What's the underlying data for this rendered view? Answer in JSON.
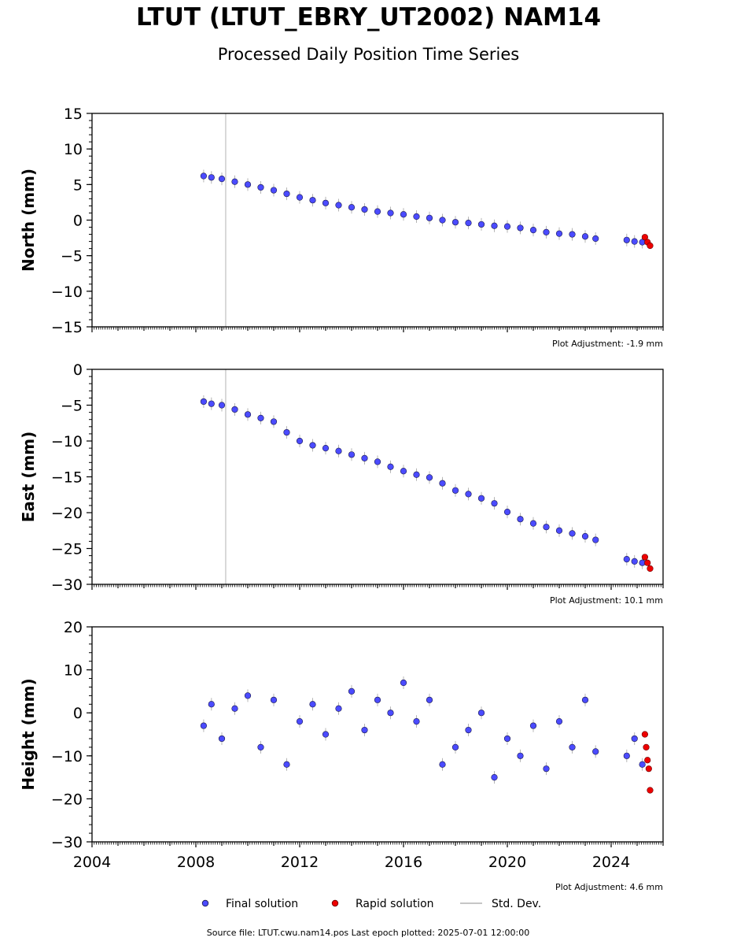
{
  "title": "LTUT (LTUT_EBRY_UT2002) NAM14",
  "subtitle": "Processed Daily Position Time Series",
  "colors": {
    "final_fill": "#4b4bff",
    "final_edge": "#1a1a4a",
    "rapid_fill": "#ee0000",
    "std_dev": "#b4b4b4",
    "vertical_marker": "#cccccc"
  },
  "legend": {
    "final": "Final solution",
    "rapid": "Rapid solution",
    "std": "Std. Dev."
  },
  "source_text": "Source file: LTUT.cwu.nam14.pos  Last epoch plotted: 2025-07-01 12:00:00",
  "chart_data": [
    {
      "type": "scatter",
      "ylabel": "North (mm)",
      "ylim": [
        -15,
        15
      ],
      "yticks": [
        15,
        10,
        5,
        0,
        -5,
        -10,
        -15
      ],
      "xlim": [
        2004,
        2026
      ],
      "adjustment": "Plot Adjustment: -1.9 mm",
      "equipment_change_line": 2009.15,
      "final_series": {
        "name": "Final solution",
        "x": [
          2008.3,
          2008.6,
          2009.0,
          2009.5,
          2010.0,
          2010.5,
          2011.0,
          2011.5,
          2012.0,
          2012.5,
          2013.0,
          2013.5,
          2014.0,
          2014.5,
          2015.0,
          2015.5,
          2016.0,
          2016.5,
          2017.0,
          2017.5,
          2018.0,
          2018.5,
          2019.0,
          2019.5,
          2020.0,
          2020.5,
          2021.0,
          2021.5,
          2022.0,
          2022.5,
          2023.0,
          2023.4,
          2024.6,
          2024.9,
          2025.2
        ],
        "y": [
          6.2,
          6.0,
          5.8,
          5.4,
          5.0,
          4.6,
          4.2,
          3.7,
          3.2,
          2.8,
          2.4,
          2.1,
          1.8,
          1.5,
          1.2,
          1.0,
          0.8,
          0.5,
          0.3,
          0.0,
          -0.3,
          -0.4,
          -0.6,
          -0.8,
          -0.9,
          -1.1,
          -1.4,
          -1.7,
          -1.9,
          -2.0,
          -2.3,
          -2.6,
          -2.8,
          -3.0,
          -3.1
        ]
      },
      "rapid_series": {
        "name": "Rapid solution",
        "x": [
          2025.3,
          2025.4,
          2025.5
        ],
        "y": [
          -2.4,
          -3.1,
          -3.6
        ]
      }
    },
    {
      "type": "scatter",
      "ylabel": "East (mm)",
      "ylim": [
        -30,
        0
      ],
      "yticks": [
        0,
        -5,
        -10,
        -15,
        -20,
        -25,
        -30
      ],
      "xlim": [
        2004,
        2026
      ],
      "adjustment": "Plot Adjustment: 10.1 mm",
      "equipment_change_line": 2009.15,
      "final_series": {
        "name": "Final solution",
        "x": [
          2008.3,
          2008.6,
          2009.0,
          2009.5,
          2010.0,
          2010.5,
          2011.0,
          2011.5,
          2012.0,
          2012.5,
          2013.0,
          2013.5,
          2014.0,
          2014.5,
          2015.0,
          2015.5,
          2016.0,
          2016.5,
          2017.0,
          2017.5,
          2018.0,
          2018.5,
          2019.0,
          2019.5,
          2020.0,
          2020.5,
          2021.0,
          2021.5,
          2022.0,
          2022.5,
          2023.0,
          2023.4,
          2024.6,
          2024.9,
          2025.2
        ],
        "y": [
          -4.5,
          -4.8,
          -5.0,
          -5.6,
          -6.3,
          -6.8,
          -7.3,
          -8.8,
          -10.0,
          -10.6,
          -11.0,
          -11.4,
          -11.9,
          -12.4,
          -12.9,
          -13.6,
          -14.2,
          -14.7,
          -15.1,
          -15.9,
          -16.9,
          -17.4,
          -18.0,
          -18.7,
          -19.9,
          -20.9,
          -21.5,
          -22.0,
          -22.5,
          -22.9,
          -23.3,
          -23.8,
          -26.5,
          -26.8,
          -27.0
        ]
      },
      "rapid_series": {
        "name": "Rapid solution",
        "x": [
          2025.3,
          2025.4,
          2025.5
        ],
        "y": [
          -26.2,
          -27.0,
          -27.8
        ]
      }
    },
    {
      "type": "scatter",
      "ylabel": "Height (mm)",
      "ylim": [
        -30,
        20
      ],
      "yticks": [
        20,
        10,
        0,
        -10,
        -20,
        -30
      ],
      "xlim": [
        2004,
        2026
      ],
      "xticks": [
        2004,
        2008,
        2012,
        2016,
        2020,
        2024
      ],
      "adjustment": "Plot Adjustment: 4.6 mm",
      "final_series": {
        "name": "Final solution",
        "x": [
          2008.3,
          2008.6,
          2009.0,
          2009.5,
          2010.0,
          2010.5,
          2011.0,
          2011.5,
          2012.0,
          2012.5,
          2013.0,
          2013.5,
          2014.0,
          2014.5,
          2015.0,
          2015.5,
          2016.0,
          2016.5,
          2017.0,
          2017.5,
          2018.0,
          2018.5,
          2019.0,
          2019.5,
          2020.0,
          2020.5,
          2021.0,
          2021.5,
          2022.0,
          2022.5,
          2023.0,
          2023.4,
          2024.6,
          2024.9,
          2025.2
        ],
        "y": [
          -3,
          2,
          -6,
          1,
          4,
          -8,
          3,
          -12,
          -2,
          2,
          -5,
          1,
          5,
          -4,
          3,
          0,
          7,
          -2,
          3,
          -12,
          -8,
          -4,
          0,
          -15,
          -6,
          -10,
          -3,
          -13,
          -2,
          -8,
          3,
          -9,
          -10,
          -6,
          -12
        ]
      },
      "rapid_series": {
        "name": "Rapid solution",
        "x": [
          2025.3,
          2025.35,
          2025.4,
          2025.45,
          2025.5
        ],
        "y": [
          -5,
          -8,
          -11,
          -13,
          -18
        ]
      }
    }
  ]
}
